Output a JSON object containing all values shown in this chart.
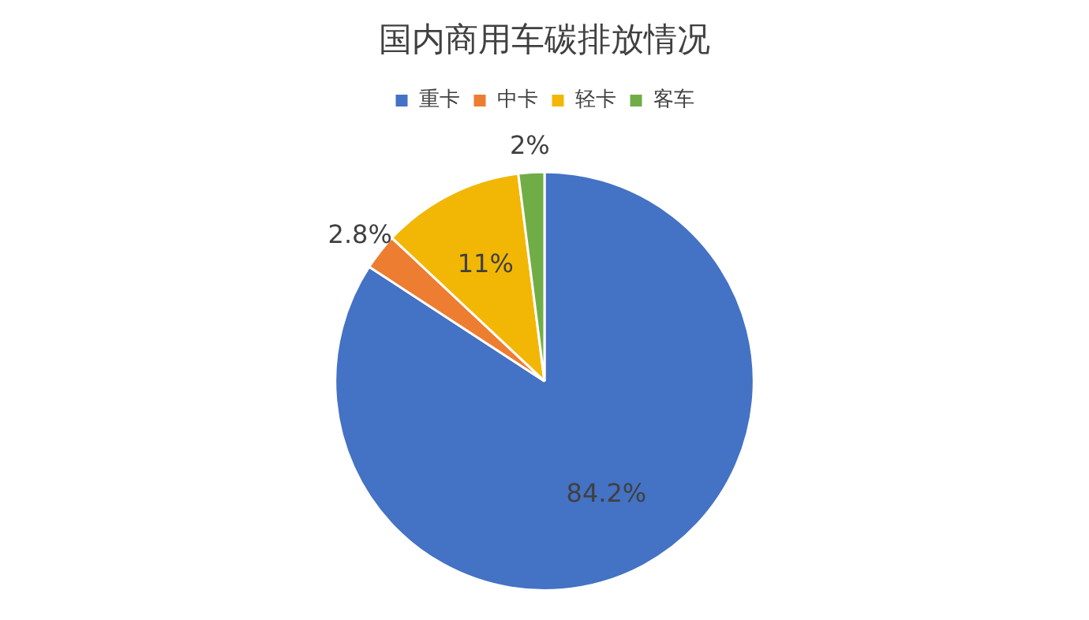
{
  "chart_data": {
    "type": "pie",
    "title": "国内商用车碳排放情况",
    "categories": [
      "重卡",
      "中卡",
      "轻卡",
      "客车"
    ],
    "values": [
      84.2,
      2.8,
      11,
      2
    ],
    "colors": [
      "#4472c4",
      "#ed7d31",
      "#f2b705",
      "#70ad47"
    ],
    "value_labels": [
      "84.2%",
      "2.8%",
      "11%",
      "2%"
    ],
    "legend": "top"
  }
}
